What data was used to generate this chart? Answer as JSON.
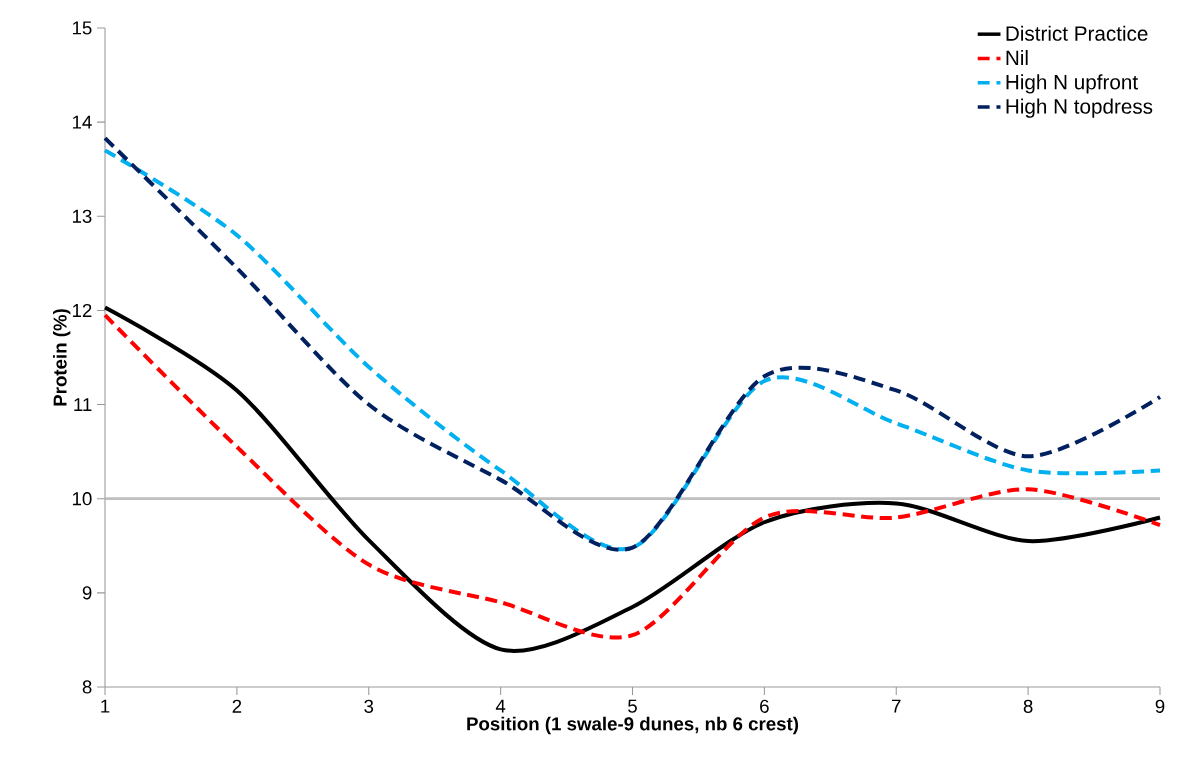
{
  "chart_data": {
    "type": "line",
    "xlabel": "Position (1 swale-9 dunes, nb 6 crest)",
    "ylabel": "Protein (%)",
    "x": [
      1,
      2,
      3,
      4,
      5,
      6,
      7,
      8,
      9
    ],
    "series": [
      {
        "name": "District Practice",
        "color": "#000000",
        "line_style": "solid",
        "values": [
          12.03,
          11.15,
          9.56,
          8.4,
          8.85,
          9.75,
          9.95,
          9.55,
          9.8
        ]
      },
      {
        "name": "Nil",
        "color": "#ff0000",
        "line_style": "dashed",
        "values": [
          11.95,
          10.55,
          9.3,
          8.9,
          8.55,
          9.8,
          9.8,
          10.1,
          9.72
        ]
      },
      {
        "name": "High N upfront",
        "color": "#00b0f0",
        "line_style": "dashed",
        "values": [
          13.7,
          12.8,
          11.4,
          10.3,
          9.48,
          11.25,
          10.8,
          10.3,
          10.3
        ]
      },
      {
        "name": "High N topdress",
        "color": "#002060",
        "line_style": "dashed",
        "values": [
          13.83,
          12.45,
          11.0,
          10.2,
          9.48,
          11.3,
          11.15,
          10.45,
          11.08
        ]
      }
    ],
    "xlim": [
      1,
      9
    ],
    "xticks": [
      1,
      2,
      3,
      4,
      5,
      6,
      7,
      8,
      9
    ],
    "ylim": [
      8,
      15
    ],
    "yticks": [
      8,
      9,
      10,
      11,
      12,
      13,
      14,
      15
    ],
    "ref_lines": [
      {
        "axis": "y",
        "value": 10,
        "color": "#bfbfbf"
      }
    ],
    "grid": false,
    "legend": "top right",
    "marker": "none"
  }
}
